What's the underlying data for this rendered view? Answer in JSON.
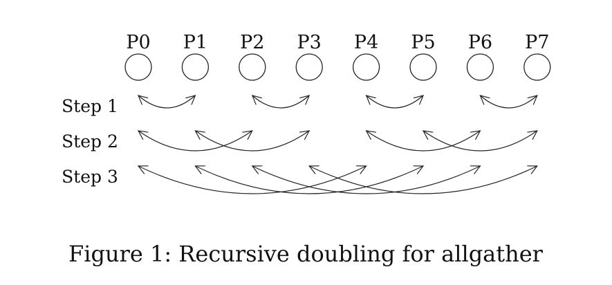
{
  "diagram": {
    "processes": [
      "P0",
      "P1",
      "P2",
      "P3",
      "P4",
      "P5",
      "P6",
      "P7"
    ],
    "steps": [
      {
        "label": "Step 1",
        "distance": 1
      },
      {
        "label": "Step 2",
        "distance": 2
      },
      {
        "label": "Step 3",
        "distance": 4
      }
    ]
  },
  "caption": "Figure 1: Recursive doubling for allgather"
}
